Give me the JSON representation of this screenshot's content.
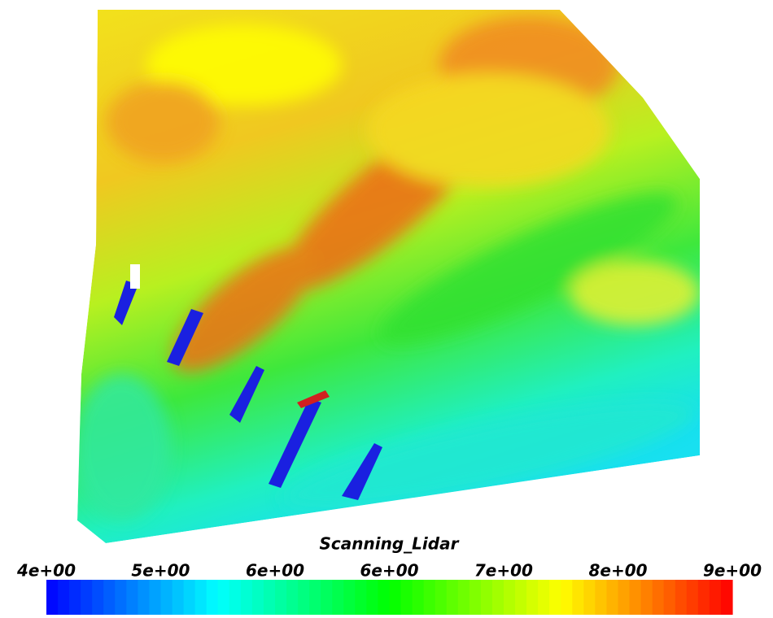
{
  "chart_data": {
    "type": "colorbar",
    "title": "Scanning_Lidar",
    "clim": [
      4,
      9
    ],
    "colormap": [
      "#0000ff",
      "#00ffff",
      "#00ff00",
      "#ffff00",
      "#ff0000"
    ],
    "ticks": [
      {
        "value": 4,
        "label": "4e+00"
      },
      {
        "value": 4.833,
        "label": "5e+00"
      },
      {
        "value": 5.667,
        "label": "6e+00"
      },
      {
        "value": 6.5,
        "label": "6e+00"
      },
      {
        "value": 7.333,
        "label": "7e+00"
      },
      {
        "value": 8.167,
        "label": "8e+00"
      },
      {
        "value": 9,
        "label": "9e+00"
      }
    ]
  }
}
